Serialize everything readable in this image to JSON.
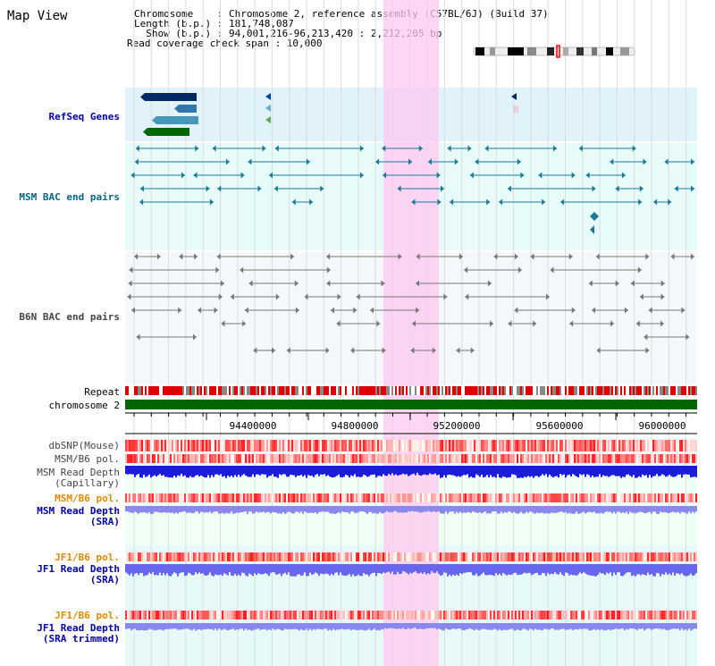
{
  "header": {
    "title": "Map View",
    "chromosome_line": "Chromosome    : Chromosome 2, reference assembly (C57BL/6J) (Build 37)",
    "length_line": "Length (b.p.) : 181,748,087",
    "show_line": "  Show (b.p.) : 94,001,216-96,213,420 : 2,212,205 bp",
    "coverage_line": "Read coverage check span : 10,000"
  },
  "tracks": {
    "refseq": "RefSeq Genes",
    "msm_bac": "MSM BAC end pairs",
    "b6n_bac": "B6N BAC end pairs",
    "repeat": "Repeat",
    "chromosome": "chromosome 2",
    "dbsnp": "dbSNP(Mouse)",
    "msm_b6_pol_1": "MSM/B6 pol.",
    "msm_read_depth_cap": "MSM Read Depth\n(Capillary)",
    "msm_b6_pol_2": "MSM/B6 pol.",
    "msm_read_depth_sra": "MSM Read Depth\n(SRA)",
    "jf1_b6_pol_1": "JF1/B6 pol.",
    "jf1_read_depth_sra": "JF1 Read Depth\n(SRA)",
    "jf1_b6_pol_2": "JF1/B6 pol.",
    "jf1_read_depth_trim": "JF1 Read Depth\n(SRA trimmed)"
  },
  "axis": {
    "ticks": [
      "94400000",
      "94800000",
      "95200000",
      "95600000",
      "96000000"
    ]
  },
  "colors": {
    "refseq_bg": "#e0f2fa",
    "bac_bg": "#e8fbfb",
    "highlight": "#ffc8f0",
    "msm_label": "#006688",
    "refseq_label": "#0000aa",
    "orange_label": "#e08800",
    "blue_label": "#0000aa",
    "chromosome_bar": "#006600"
  }
}
